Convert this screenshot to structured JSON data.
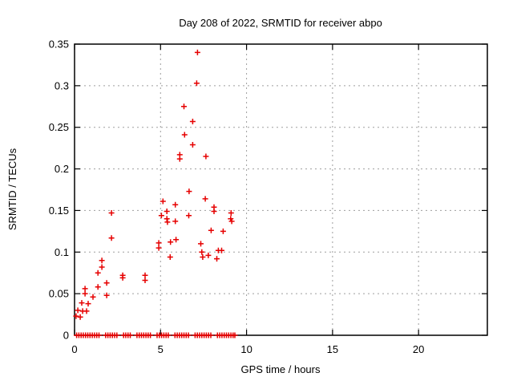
{
  "chart_data": {
    "type": "scatter",
    "title": "Day 208 of 2022, SRMTID for receiver abpo",
    "xlabel": "GPS time / hours",
    "ylabel": "SRMTID / TECUs",
    "xlim": [
      0,
      24
    ],
    "ylim": [
      0,
      0.35
    ],
    "xtick_values": [
      0,
      5,
      10,
      15,
      20
    ],
    "xtick_labels": [
      "0",
      "5",
      "10",
      "15",
      "20"
    ],
    "ytick_values": [
      0,
      0.05,
      0.1,
      0.15,
      0.2,
      0.25,
      0.3,
      0.35
    ],
    "ytick_labels": [
      "0",
      "0.05",
      "0.1",
      "0.15",
      "0.2",
      "0.25",
      "0.3",
      "0.35"
    ],
    "grid": true,
    "legend": "none",
    "marker": "plus",
    "marker_color": "#e60000",
    "series": [
      {
        "name": "SRMTID",
        "points": [
          [
            0.09,
            0.023
          ],
          [
            0.19,
            0.03
          ],
          [
            0.33,
            0.022
          ],
          [
            0.42,
            0.039
          ],
          [
            0.47,
            0.029
          ],
          [
            0.61,
            0.056
          ],
          [
            0.61,
            0.05
          ],
          [
            0.7,
            0.029
          ],
          [
            0.79,
            0.038
          ],
          [
            1.07,
            0.046
          ],
          [
            1.36,
            0.075
          ],
          [
            1.36,
            0.058
          ],
          [
            1.59,
            0.09
          ],
          [
            1.59,
            0.082
          ],
          [
            1.87,
            0.063
          ],
          [
            1.87,
            0.048
          ],
          [
            2.15,
            0.147
          ],
          [
            2.15,
            0.117
          ],
          [
            2.8,
            0.072
          ],
          [
            2.8,
            0.069
          ],
          [
            4.1,
            0.072
          ],
          [
            4.1,
            0.066
          ],
          [
            4.9,
            0.111
          ],
          [
            4.9,
            0.105
          ],
          [
            5.05,
            0.144
          ],
          [
            5.14,
            0.161
          ],
          [
            5.37,
            0.149
          ],
          [
            5.37,
            0.14
          ],
          [
            5.4,
            0.136
          ],
          [
            5.56,
            0.094
          ],
          [
            5.58,
            0.112
          ],
          [
            5.86,
            0.157
          ],
          [
            5.86,
            0.137
          ],
          [
            5.9,
            0.115
          ],
          [
            6.12,
            0.217
          ],
          [
            6.12,
            0.212
          ],
          [
            6.36,
            0.275
          ],
          [
            6.4,
            0.241
          ],
          [
            6.64,
            0.144
          ],
          [
            6.66,
            0.173
          ],
          [
            6.87,
            0.257
          ],
          [
            6.87,
            0.229
          ],
          [
            7.1,
            0.303
          ],
          [
            7.15,
            0.34
          ],
          [
            7.34,
            0.11
          ],
          [
            7.4,
            0.1
          ],
          [
            7.45,
            0.094
          ],
          [
            7.6,
            0.164
          ],
          [
            7.64,
            0.215
          ],
          [
            7.78,
            0.096
          ],
          [
            7.94,
            0.126
          ],
          [
            8.11,
            0.154
          ],
          [
            8.11,
            0.149
          ],
          [
            8.27,
            0.092
          ],
          [
            8.36,
            0.102
          ],
          [
            8.55,
            0.102
          ],
          [
            8.64,
            0.125
          ],
          [
            9.08,
            0.14
          ],
          [
            9.1,
            0.147
          ],
          [
            9.14,
            0.137
          ]
        ]
      }
    ],
    "zero_row": {
      "value": 0,
      "hours": [
        0.12,
        0.25,
        0.38,
        0.51,
        0.64,
        0.77,
        0.9,
        1.03,
        1.16,
        1.29,
        1.42,
        1.81,
        1.94,
        2.07,
        2.2,
        2.33,
        2.46,
        2.85,
        2.98,
        3.11,
        3.24,
        3.63,
        3.76,
        3.89,
        4.02,
        4.15,
        4.28,
        4.41,
        4.8,
        4.93,
        5.06,
        5.19,
        5.32,
        5.45,
        5.84,
        5.97,
        6.1,
        6.23,
        6.36,
        6.49,
        6.62,
        7.01,
        7.14,
        7.27,
        7.4,
        7.53,
        7.66,
        7.79,
        7.92,
        8.31,
        8.44,
        8.57,
        8.7,
        8.83,
        8.96,
        9.09,
        9.22,
        9.32
      ]
    }
  }
}
